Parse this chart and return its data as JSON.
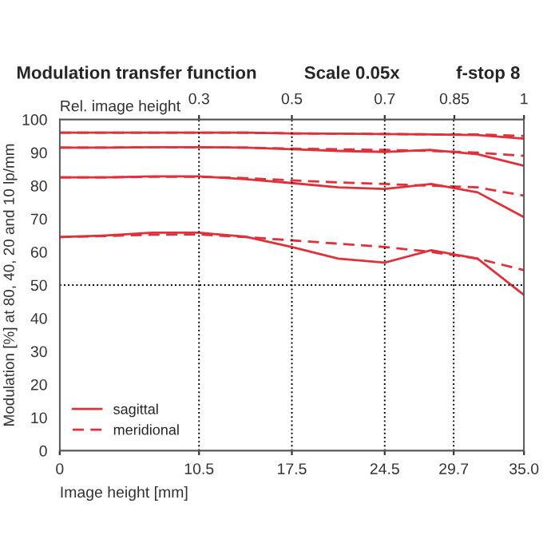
{
  "chart_data": {
    "type": "line",
    "title": "Modulation transfer function",
    "annotations": [
      "Scale 0.05x",
      "f-stop 8"
    ],
    "xlabel": "Image height [mm]",
    "ylabel": "Modulation [%] at 80, 40, 20 and 10 lp/mm",
    "x2label": "Rel. image height",
    "x": [
      0,
      3.5,
      7,
      10.5,
      14,
      17.5,
      21,
      24.5,
      28,
      31.5,
      35
    ],
    "series": [
      {
        "name": "sagittal",
        "color": "#e0303a",
        "line_style": "solid",
        "values": [
          96,
          96,
          96,
          96,
          96,
          95.8,
          95.7,
          95.6,
          95.5,
          95.3,
          94.2
        ]
      },
      {
        "color": "#e0303a",
        "line_style": "dashed",
        "values": [
          96,
          96,
          96,
          96,
          96,
          95.8,
          95.7,
          95.6,
          95.5,
          95.5,
          95
        ]
      },
      {
        "color": "#e0303a",
        "line_style": "solid",
        "values": [
          91.5,
          91.5,
          91.6,
          91.6,
          91.5,
          91,
          90.5,
          90.2,
          90.8,
          89.5,
          86
        ]
      },
      {
        "color": "#e0303a",
        "line_style": "dashed",
        "values": [
          91.5,
          91.5,
          91.6,
          91.6,
          91.5,
          91.2,
          91,
          90.8,
          90.5,
          90,
          89
        ]
      },
      {
        "color": "#e0303a",
        "line_style": "solid",
        "values": [
          82.5,
          82.5,
          82.8,
          82.8,
          82,
          80.8,
          79.5,
          79,
          80.5,
          78,
          70.5
        ]
      },
      {
        "color": "#e0303a",
        "line_style": "dashed",
        "values": [
          82.5,
          82.5,
          82.7,
          82.7,
          82.3,
          81.6,
          81,
          80.5,
          80,
          79.5,
          77
        ]
      },
      {
        "color": "#e0303a",
        "line_style": "solid",
        "values": [
          64.5,
          65,
          65.8,
          65.8,
          64.6,
          61.5,
          58,
          56.8,
          60.5,
          58,
          47
        ]
      },
      {
        "name": "meridional",
        "color": "#e0303a",
        "line_style": "dashed",
        "values": [
          64.5,
          64.8,
          65.2,
          65.3,
          64.5,
          63.5,
          62.5,
          61.5,
          60,
          58,
          54.5
        ]
      }
    ],
    "xlim": [
      0,
      35
    ],
    "ylim": [
      0,
      100
    ],
    "xticks": [
      0,
      10.5,
      17.5,
      24.5,
      29.7,
      {
        "value": 35,
        "label": "35.0"
      }
    ],
    "yticks": [
      0,
      10,
      20,
      30,
      40,
      50,
      60,
      70,
      80,
      90,
      100
    ],
    "x2lim": [
      0,
      1
    ],
    "x2ticks": [
      0.3,
      0.5,
      0.7,
      0.85,
      1
    ],
    "ref_lines": [
      {
        "axis": "x",
        "value": 10.5,
        "line_style": "dotted",
        "color": "#000000"
      },
      {
        "axis": "x",
        "value": 17.5,
        "line_style": "dotted",
        "color": "#000000"
      },
      {
        "axis": "x",
        "value": 24.5,
        "line_style": "dotted",
        "color": "#000000"
      },
      {
        "axis": "x",
        "value": 29.7,
        "line_style": "dotted",
        "color": "#000000"
      },
      {
        "axis": "y",
        "value": 50,
        "line_style": "dotted",
        "color": "#000000"
      }
    ],
    "legend": "bottom left",
    "grid": false,
    "marker": "none"
  }
}
